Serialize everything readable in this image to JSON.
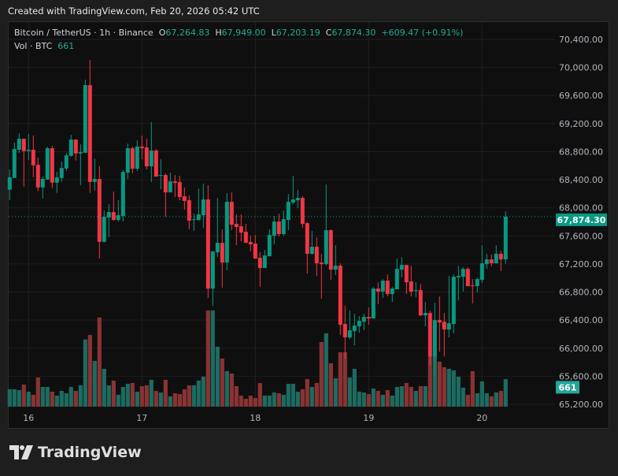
{
  "header": {
    "created_with": "Created with TradingView.com, Feb 20, 2026 05:42 UTC"
  },
  "legend": {
    "symbol": "Bitcoin / TetherUS · 1h · Binance",
    "open_label": "O",
    "open": "67,264.83",
    "high_label": "H",
    "high": "67,949.00",
    "low_label": "L",
    "low": "67,203.19",
    "close_label": "C",
    "close": "67,874.30",
    "change": "+609.47 (+0.91%)",
    "volume_label": "Vol · BTC",
    "volume": "661"
  },
  "badges": {
    "last_price": "67,874.30",
    "last_volume": "661"
  },
  "logo": {
    "text": "TradingView"
  },
  "colors": {
    "up": "#089981",
    "down": "#f23645",
    "vol_up": "#1d6b61",
    "vol_down": "#8a3333",
    "background": "#0f0f0f",
    "last_price_badge": "#089981"
  },
  "chart_data": {
    "type": "candlestick",
    "price_axis": {
      "ticks": [
        "70,400.00",
        "70,000.00",
        "69,600.00",
        "69,200.00",
        "68,800.00",
        "68,400.00",
        "68,000.00",
        "67,600.00",
        "67,200.00",
        "66,800.00",
        "66,400.00",
        "66,000.00",
        "65,600.00",
        "65,200.00"
      ],
      "range": [
        65200,
        70400
      ]
    },
    "time_axis": {
      "ticks": [
        "16",
        "17",
        "18",
        "19",
        "20"
      ]
    },
    "last_price": 67874.3,
    "fields": [
      "open",
      "high",
      "low",
      "close",
      "volume"
    ],
    "candles": [
      [
        68258,
        68546,
        68111,
        68434,
        416
      ],
      [
        68426,
        68928,
        68426,
        68838,
        416
      ],
      [
        68827,
        69063,
        68782,
        68984,
        397
      ],
      [
        68984,
        68984,
        68303,
        68808,
        529
      ],
      [
        68808,
        69051,
        68684,
        68827,
        359
      ],
      [
        68827,
        69029,
        68437,
        68606,
        284
      ],
      [
        68613,
        68714,
        68235,
        68291,
        699
      ],
      [
        68291,
        68445,
        68134,
        68411,
        473
      ],
      [
        68404,
        68872,
        68400,
        68849,
        473
      ],
      [
        68849,
        68883,
        68280,
        68359,
        359
      ],
      [
        68359,
        68512,
        68213,
        68434,
        265
      ],
      [
        68426,
        68658,
        68370,
        68568,
        378
      ],
      [
        68561,
        68782,
        68527,
        68748,
        321
      ],
      [
        68741,
        69040,
        68729,
        68973,
        473
      ],
      [
        68973,
        68973,
        68673,
        68774,
        378
      ],
      [
        68774,
        68905,
        68325,
        68793,
        510
      ],
      [
        68785,
        69827,
        68785,
        69748,
        1610
      ],
      [
        69748,
        70108,
        68213,
        68370,
        1720
      ],
      [
        68370,
        68703,
        68246,
        68411,
        1096
      ],
      [
        68411,
        68591,
        67280,
        67516,
        2136
      ],
      [
        67516,
        67962,
        67505,
        67872,
        907
      ],
      [
        67861,
        68052,
        67583,
        67939,
        510
      ],
      [
        67939,
        68231,
        67816,
        67827,
        624
      ],
      [
        67827,
        68108,
        67804,
        67894,
        284
      ],
      [
        67883,
        68535,
        67804,
        68512,
        473
      ],
      [
        68501,
        68917,
        68411,
        68849,
        548
      ],
      [
        68849,
        68872,
        68490,
        68557,
        567
      ],
      [
        68557,
        68962,
        68523,
        68872,
        359
      ],
      [
        68872,
        69029,
        68692,
        68849,
        491
      ],
      [
        68860,
        68984,
        68546,
        68591,
        510
      ],
      [
        68591,
        69220,
        68366,
        68816,
        643
      ],
      [
        68816,
        68838,
        68445,
        68445,
        378
      ],
      [
        68456,
        68692,
        68265,
        68467,
        340
      ],
      [
        68467,
        68490,
        67872,
        68220,
        643
      ],
      [
        68220,
        68501,
        68220,
        68377,
        246
      ],
      [
        68377,
        68467,
        68153,
        68355,
        321
      ],
      [
        68366,
        68456,
        68108,
        68153,
        302
      ],
      [
        68164,
        68288,
        67973,
        68097,
        416
      ],
      [
        68108,
        68175,
        67692,
        67816,
        510
      ],
      [
        67827,
        67917,
        67670,
        67838,
        510
      ],
      [
        67827,
        68276,
        67816,
        67906,
        624
      ],
      [
        67894,
        68344,
        67715,
        68119,
        718
      ],
      [
        68119,
        68321,
        66715,
        66849,
        2306
      ],
      [
        66849,
        67389,
        66602,
        67377,
        2306
      ],
      [
        67366,
        68141,
        67299,
        67501,
        1436
      ],
      [
        67501,
        67692,
        66861,
        67220,
        1153
      ],
      [
        67220,
        68209,
        67108,
        68085,
        851
      ],
      [
        68085,
        68220,
        67681,
        67760,
        794
      ],
      [
        67771,
        67906,
        67467,
        67726,
        491
      ],
      [
        67737,
        67906,
        67524,
        67647,
        265
      ],
      [
        67658,
        67771,
        67501,
        67501,
        189
      ],
      [
        67512,
        67602,
        67377,
        67479,
        265
      ],
      [
        67490,
        67613,
        67276,
        67276,
        208
      ],
      [
        67288,
        67366,
        66872,
        67142,
        567
      ],
      [
        67142,
        67400,
        67142,
        67321,
        265
      ],
      [
        67310,
        67692,
        67310,
        67613,
        265
      ],
      [
        67602,
        67883,
        67479,
        67804,
        340
      ],
      [
        67804,
        67917,
        67591,
        67625,
        321
      ],
      [
        67625,
        67962,
        67602,
        67838,
        284
      ],
      [
        67827,
        68198,
        67681,
        68085,
        548
      ],
      [
        68074,
        68456,
        68052,
        68119,
        548
      ],
      [
        68108,
        68254,
        67995,
        68141,
        359
      ],
      [
        68141,
        68164,
        67715,
        67771,
        416
      ],
      [
        67782,
        67793,
        67063,
        67344,
        662
      ],
      [
        67344,
        67670,
        67333,
        67445,
        473
      ],
      [
        67445,
        67580,
        67029,
        67209,
        567
      ],
      [
        67220,
        67344,
        66703,
        67198,
        1550
      ],
      [
        67198,
        68333,
        67175,
        67681,
        1758
      ],
      [
        67681,
        67692,
        66973,
        67119,
        1040
      ],
      [
        67119,
        67467,
        67040,
        67175,
        680
      ],
      [
        67175,
        67209,
        66187,
        66333,
        1304
      ],
      [
        66344,
        66602,
        65850,
        66153,
        1304
      ],
      [
        66153,
        66535,
        66130,
        66254,
        699
      ],
      [
        66243,
        66490,
        66041,
        66321,
        907
      ],
      [
        66310,
        66456,
        66220,
        66389,
        359
      ],
      [
        66377,
        66490,
        66254,
        66445,
        340
      ],
      [
        66445,
        66580,
        66333,
        66423,
        302
      ],
      [
        66423,
        66872,
        66423,
        66849,
        435
      ],
      [
        66849,
        66939,
        66625,
        66805,
        378
      ],
      [
        66805,
        66984,
        66715,
        66962,
        284
      ],
      [
        66962,
        67051,
        66737,
        66771,
        397
      ],
      [
        66771,
        66872,
        66658,
        66849,
        265
      ],
      [
        66838,
        67276,
        66838,
        67130,
        473
      ],
      [
        67119,
        67299,
        67007,
        67186,
        491
      ],
      [
        67186,
        67186,
        66771,
        66939,
        567
      ],
      [
        66951,
        67175,
        66737,
        66805,
        473
      ],
      [
        66816,
        66939,
        66726,
        66827,
        378
      ],
      [
        66827,
        66917,
        66456,
        66467,
        491
      ],
      [
        66467,
        66658,
        66310,
        66501,
        491
      ],
      [
        66501,
        66535,
        65748,
        65883,
        1210
      ],
      [
        65883,
        66647,
        65614,
        66400,
        1210
      ],
      [
        66400,
        66737,
        65950,
        66366,
        1077
      ],
      [
        66377,
        66501,
        65883,
        66265,
        945
      ],
      [
        66265,
        67029,
        66153,
        66355,
        907
      ],
      [
        66344,
        67051,
        66209,
        67018,
        869
      ],
      [
        67007,
        67175,
        66681,
        67029,
        718
      ],
      [
        67018,
        67153,
        66805,
        67130,
        454
      ],
      [
        67130,
        67153,
        66883,
        66883,
        284
      ],
      [
        66894,
        66984,
        66636,
        66883,
        851
      ],
      [
        66883,
        67007,
        66793,
        66984,
        321
      ],
      [
        66973,
        67467,
        66928,
        67209,
        605
      ],
      [
        67198,
        67344,
        67130,
        67265,
        321
      ],
      [
        67265,
        67333,
        67164,
        67209,
        246
      ],
      [
        67209,
        67467,
        67209,
        67344,
        340
      ],
      [
        67344,
        67389,
        67097,
        67264.83,
        378
      ],
      [
        67264.83,
        67949,
        67203.19,
        67874.3,
        661
      ]
    ]
  }
}
